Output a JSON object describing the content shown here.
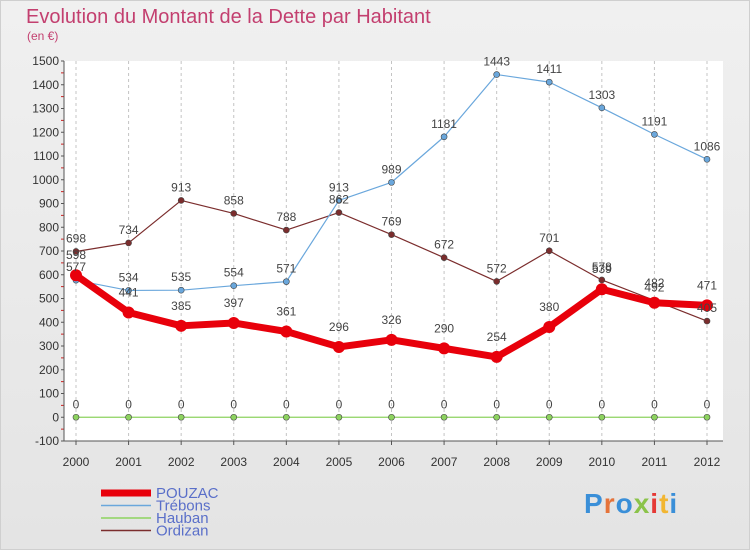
{
  "page": {
    "title": "Evolution du Montant de la Dette par Habitant",
    "subtitle": "(en €)"
  },
  "logo": {
    "text": "Proxiti",
    "colors": [
      "#3a8fd8",
      "#e5733a",
      "#3a8fd8",
      "#8bc34a",
      "#e53935",
      "#f2b632",
      "#3a8fd8"
    ]
  },
  "chart_data": {
    "type": "line",
    "title": "Evolution du Montant de la Dette par Habitant",
    "subtitle": "(en €)",
    "x": [
      "2000",
      "2001",
      "2002",
      "2003",
      "2004",
      "2005",
      "2006",
      "2007",
      "2008",
      "2009",
      "2010",
      "2011",
      "2012"
    ],
    "ylim": [
      -100,
      1500
    ],
    "yticks": [
      -100,
      0,
      100,
      200,
      300,
      400,
      500,
      600,
      700,
      800,
      900,
      1000,
      1100,
      1200,
      1300,
      1400,
      1500
    ],
    "grid": "vertical",
    "legend_position": "bottom-left",
    "series": [
      {
        "name": "POUZAC",
        "color": "#e8000b",
        "values": [
          598,
          441,
          385,
          397,
          361,
          296,
          326,
          290,
          254,
          380,
          539,
          482,
          471
        ]
      },
      {
        "name": "Trébons",
        "color": "#6aa7dc",
        "values": [
          577,
          534,
          535,
          554,
          571,
          913,
          989,
          1181,
          1443,
          1411,
          1303,
          1191,
          1086
        ]
      },
      {
        "name": "Hauban",
        "color": "#8dd35f",
        "values": [
          0,
          0,
          0,
          0,
          0,
          0,
          0,
          0,
          0,
          0,
          0,
          0,
          0
        ]
      },
      {
        "name": "Ordizan",
        "color": "#7b2d2d",
        "values": [
          698,
          734,
          913,
          858,
          788,
          862,
          769,
          672,
          572,
          701,
          578,
          492,
          405
        ]
      }
    ]
  }
}
